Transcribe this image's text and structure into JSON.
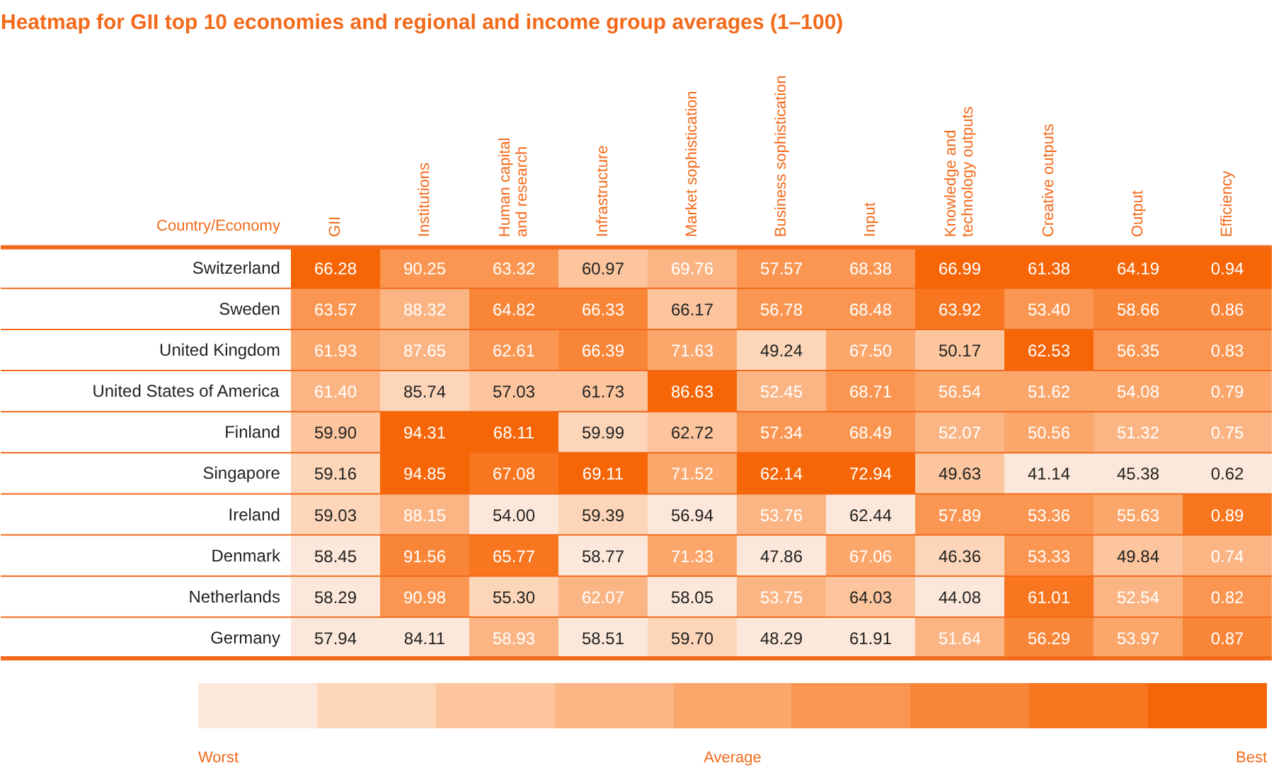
{
  "chart_data": {
    "type": "heatmap",
    "title": "Heatmap for GII top 10 economies and regional and income group averages (1–100)",
    "ylabel": "Country/Economy",
    "categories": [
      "GII",
      "Institutions",
      "Human capital\nand research",
      "Infrastructure",
      "Market sophistication",
      "Business sophistication",
      "Input",
      "Knowledge and\ntechnology outputs",
      "Creative outputs",
      "Output",
      "Efficiency"
    ],
    "y_categories": [
      "Switzerland",
      "Sweden",
      "United Kingdom",
      "United States of America",
      "Finland",
      "Singapore",
      "Ireland",
      "Denmark",
      "Netherlands",
      "Germany"
    ],
    "cells": [
      [
        66.28,
        90.25,
        63.32,
        60.97,
        69.76,
        57.57,
        68.38,
        66.99,
        61.38,
        64.19,
        0.94
      ],
      [
        63.57,
        88.32,
        64.82,
        66.33,
        66.17,
        56.78,
        68.48,
        63.92,
        53.4,
        58.66,
        0.86
      ],
      [
        61.93,
        87.65,
        62.61,
        66.39,
        71.63,
        49.24,
        67.5,
        50.17,
        62.53,
        56.35,
        0.83
      ],
      [
        61.4,
        85.74,
        57.03,
        61.73,
        86.63,
        52.45,
        68.71,
        56.54,
        51.62,
        54.08,
        0.79
      ],
      [
        59.9,
        94.31,
        68.11,
        59.99,
        62.72,
        57.34,
        68.49,
        52.07,
        50.56,
        51.32,
        0.75
      ],
      [
        59.16,
        94.85,
        67.08,
        69.11,
        71.52,
        62.14,
        72.94,
        49.63,
        41.14,
        45.38,
        0.62
      ],
      [
        59.03,
        88.15,
        54.0,
        59.39,
        56.94,
        53.76,
        62.44,
        57.89,
        53.36,
        55.63,
        0.89
      ],
      [
        58.45,
        91.56,
        65.77,
        58.77,
        71.33,
        47.86,
        67.06,
        46.36,
        53.33,
        49.84,
        0.74
      ],
      [
        58.29,
        90.98,
        55.3,
        62.07,
        58.05,
        53.75,
        64.03,
        44.08,
        61.01,
        52.54,
        0.82
      ],
      [
        57.94,
        84.11,
        58.93,
        58.51,
        59.7,
        48.29,
        61.91,
        51.64,
        56.29,
        53.97,
        0.87
      ]
    ],
    "cell_labels": [
      [
        "66.28",
        "90.25",
        "63.32",
        "60.97",
        "69.76",
        "57.57",
        "68.38",
        "66.99",
        "61.38",
        "64.19",
        "0.94"
      ],
      [
        "63.57",
        "88.32",
        "64.82",
        "66.33",
        "66.17",
        "56.78",
        "68.48",
        "63.92",
        "53.40",
        "58.66",
        "0.86"
      ],
      [
        "61.93",
        "87.65",
        "62.61",
        "66.39",
        "71.63",
        "49.24",
        "67.50",
        "50.17",
        "62.53",
        "56.35",
        "0.83"
      ],
      [
        "61.40",
        "85.74",
        "57.03",
        "61.73",
        "86.63",
        "52.45",
        "68.71",
        "56.54",
        "51.62",
        "54.08",
        "0.79"
      ],
      [
        "59.90",
        "94.31",
        "68.11",
        "59.99",
        "62.72",
        "57.34",
        "68.49",
        "52.07",
        "50.56",
        "51.32",
        "0.75"
      ],
      [
        "59.16",
        "94.85",
        "67.08",
        "69.11",
        "71.52",
        "62.14",
        "72.94",
        "49.63",
        "41.14",
        "45.38",
        "0.62"
      ],
      [
        "59.03",
        "88.15",
        "54.00",
        "59.39",
        "56.94",
        "53.76",
        "62.44",
        "57.89",
        "53.36",
        "55.63",
        "0.89"
      ],
      [
        "58.45",
        "91.56",
        "65.77",
        "58.77",
        "71.33",
        "47.86",
        "67.06",
        "46.36",
        "53.33",
        "49.84",
        "0.74"
      ],
      [
        "58.29",
        "90.98",
        "55.30",
        "62.07",
        "58.05",
        "53.75",
        "64.03",
        "44.08",
        "61.01",
        "52.54",
        "0.82"
      ],
      [
        "57.94",
        "84.11",
        "58.93",
        "58.51",
        "59.70",
        "48.29",
        "61.91",
        "51.64",
        "56.29",
        "53.97",
        "0.87"
      ]
    ],
    "colors": [
      "#fce8da",
      "#fdd6b9",
      "#fcc59e",
      "#fbb584",
      "#fba66b",
      "#fa9651",
      "#f98638",
      "#f8761f",
      "#f66506"
    ],
    "annotations": [
      "Worst",
      "Average",
      "Best"
    ]
  }
}
